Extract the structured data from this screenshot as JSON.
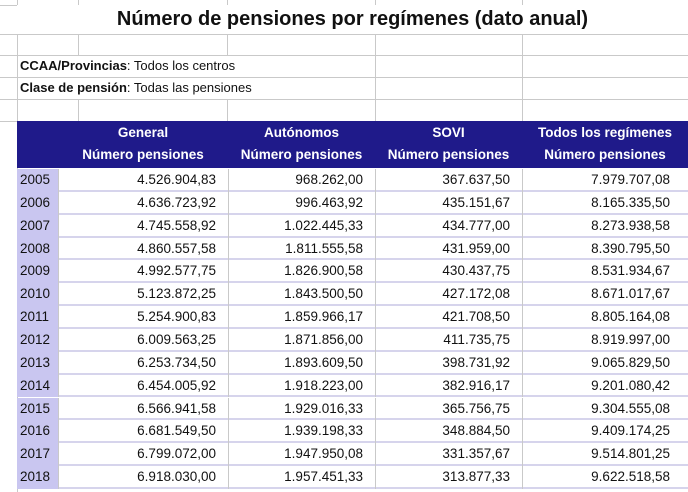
{
  "title": "Número de pensiones por regímenes (dato anual)",
  "filters": [
    {
      "label": "CCAA/Provincias",
      "value": ": Todos los centros"
    },
    {
      "label": "Clase de pensión",
      "value": ": Todas las pensiones"
    }
  ],
  "colors": {
    "header_bg": "#1f1a8a",
    "year_bg": "#c9c6f0"
  },
  "table": {
    "columns": [
      {
        "group": "General",
        "measure": "Número pensiones"
      },
      {
        "group": "Autónomos",
        "measure": "Número pensiones"
      },
      {
        "group": "SOVI",
        "measure": "Número pensiones"
      },
      {
        "group": "Todos los regímenes",
        "measure": "Número pensiones"
      }
    ],
    "rows": [
      {
        "year": "2005",
        "values": [
          "4.526.904,83",
          "968.262,00",
          "367.637,50",
          "7.979.707,08"
        ]
      },
      {
        "year": "2006",
        "values": [
          "4.636.723,92",
          "996.463,92",
          "435.151,67",
          "8.165.335,50"
        ]
      },
      {
        "year": "2007",
        "values": [
          "4.745.558,92",
          "1.022.445,33",
          "434.777,00",
          "8.273.938,58"
        ]
      },
      {
        "year": "2008",
        "values": [
          "4.860.557,58",
          "1.811.555,58",
          "431.959,00",
          "8.390.795,50"
        ]
      },
      {
        "year": "2009",
        "values": [
          "4.992.577,75",
          "1.826.900,58",
          "430.437,75",
          "8.531.934,67"
        ]
      },
      {
        "year": "2010",
        "values": [
          "5.123.872,25",
          "1.843.500,50",
          "427.172,08",
          "8.671.017,67"
        ]
      },
      {
        "year": "2011",
        "values": [
          "5.254.900,83",
          "1.859.966,17",
          "421.708,50",
          "8.805.164,08"
        ]
      },
      {
        "year": "2012",
        "values": [
          "6.009.563,25",
          "1.871.856,00",
          "411.735,75",
          "8.919.997,00"
        ]
      },
      {
        "year": "2013",
        "values": [
          "6.253.734,50",
          "1.893.609,50",
          "398.731,92",
          "9.065.829,50"
        ]
      },
      {
        "year": "2014",
        "values": [
          "6.454.005,92",
          "1.918.223,00",
          "382.916,17",
          "9.201.080,42"
        ]
      },
      {
        "year": "2015",
        "values": [
          "6.566.941,58",
          "1.929.016,33",
          "365.756,75",
          "9.304.555,08"
        ]
      },
      {
        "year": "2016",
        "values": [
          "6.681.549,50",
          "1.939.198,33",
          "348.884,50",
          "9.409.174,25"
        ]
      },
      {
        "year": "2017",
        "values": [
          "6.799.072,00",
          "1.947.950,08",
          "331.357,67",
          "9.514.801,25"
        ]
      },
      {
        "year": "2018",
        "values": [
          "6.918.030,00",
          "1.957.451,33",
          "313.877,33",
          "9.622.518,58"
        ]
      }
    ]
  }
}
